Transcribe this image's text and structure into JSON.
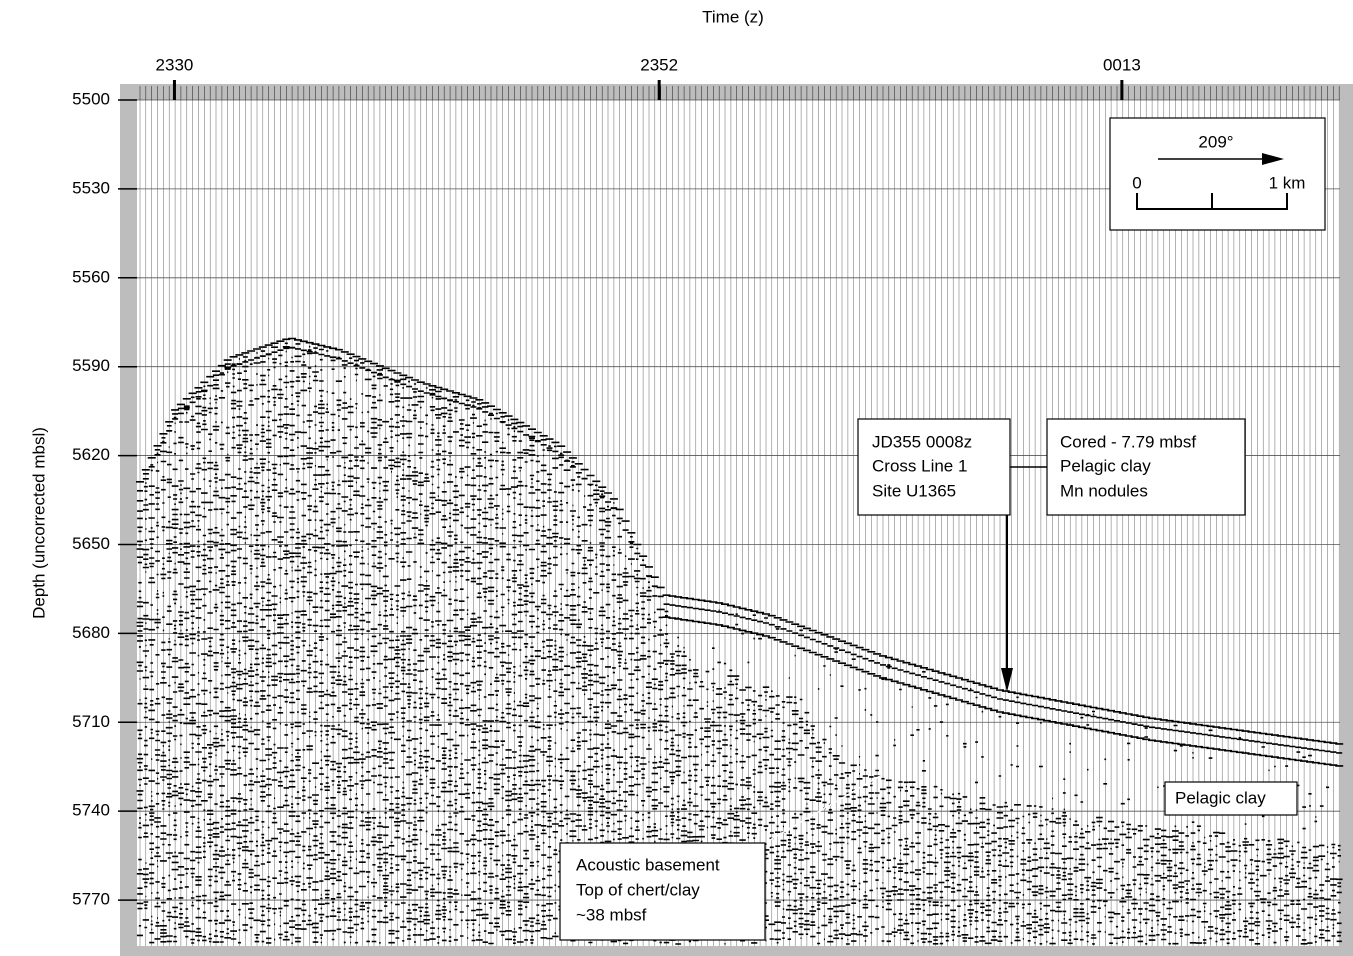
{
  "chart_data": {
    "type": "seismic-profile",
    "x_label": "Time (z)",
    "y_label": "Depth (uncorrected mbsl)",
    "xlim": [
      1408.3,
      1462.9
    ],
    "xticks": [
      {
        "value": 1410,
        "label": "2330"
      },
      {
        "value": 1432,
        "label": "2352"
      },
      {
        "value": 1453,
        "label": "0013"
      }
    ],
    "ylim": [
      5500,
      5785.5
    ],
    "y_inverted": true,
    "yticks": [
      5500,
      5530,
      5560,
      5590,
      5620,
      5650,
      5680,
      5710,
      5740,
      5770
    ],
    "grid": true,
    "scale_bar": {
      "direction": "209°",
      "start": "0",
      "end": "1 km"
    },
    "annotations": [
      {
        "lines": [
          "JD355 0008z",
          "Cross Line 1",
          "Site U1365"
        ]
      },
      {
        "lines": [
          "Cored - 7.79 mbsf",
          "Pelagic clay",
          "Mn nodules"
        ]
      },
      {
        "lines": [
          "Pelagic clay"
        ]
      },
      {
        "lines": [
          "Acoustic basement",
          "Top of chert/clay",
          "~38 mbsf"
        ]
      }
    ]
  }
}
